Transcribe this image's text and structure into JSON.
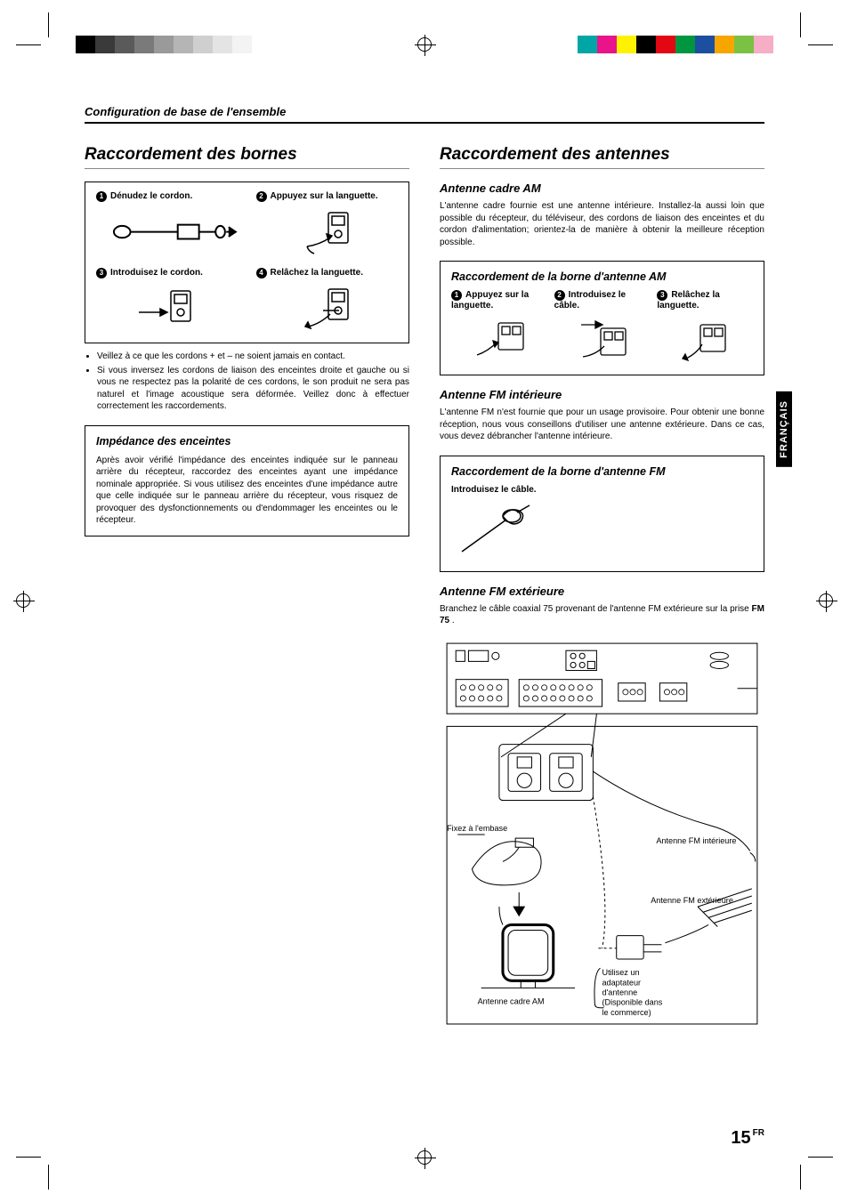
{
  "colorbar_left": [
    "#000000",
    "#3a3a3a",
    "#5a5a5a",
    "#7a7a7a",
    "#9a9a9a",
    "#b5b5b5",
    "#cfcfcf",
    "#e4e4e4",
    "#f3f3f3",
    "#ffffff"
  ],
  "colorbar_right": [
    "#00a6a6",
    "#e9138a",
    "#fff200",
    "#000000",
    "#e30613",
    "#009640",
    "#1d4fa1",
    "#f7a600",
    "#7bc143",
    "#f6adc6"
  ],
  "breadcrumb": "Configuration de base de l'ensemble",
  "lang_tab": "FRANÇAIS",
  "page_number": "15",
  "page_lang_suffix": "FR",
  "left": {
    "title": "Raccordement des bornes",
    "steps": [
      {
        "n": "1",
        "label": "Dénudez le cordon."
      },
      {
        "n": "2",
        "label": "Appuyez sur la languette."
      },
      {
        "n": "3",
        "label": "Introduisez le cordon."
      },
      {
        "n": "4",
        "label": "Relâchez la languette."
      }
    ],
    "bullets": [
      "Veillez à ce que les cordons + et – ne soient jamais en contact.",
      "Si vous inversez les cordons de liaison des enceintes droite et gauche ou si vous ne respectez pas la polarité de ces cordons, le son produit ne sera pas naturel et l'image acoustique sera déformée. Veillez donc à effectuer correctement les raccordements."
    ],
    "impedance": {
      "title": "Impédance des enceintes",
      "text": "Après avoir vérifié l'impédance des enceintes indiquée sur le panneau arrière du récepteur, raccordez des enceintes ayant une impédance nominale appropriée. Si vous utilisez des enceintes d'une impédance autre que celle indiquée sur le panneau arrière du récepteur, vous risquez de provoquer des dysfonctionnements ou d'endommager les enceintes ou le récepteur."
    }
  },
  "right": {
    "title": "Raccordement des antennes",
    "am_loop": {
      "title": "Antenne cadre AM",
      "text": "L'antenne cadre fournie est une antenne intérieure. Installez-la aussi loin que possible du récepteur, du téléviseur, des cordons de liaison des enceintes et du cordon d'alimentation; orientez-la de manière à obtenir la meilleure réception possible."
    },
    "am_box": {
      "title": "Raccordement de la borne d'antenne AM",
      "steps": [
        {
          "n": "1",
          "label": "Appuyez sur la languette."
        },
        {
          "n": "2",
          "label": "Introduisez le câble."
        },
        {
          "n": "3",
          "label": "Relâchez la languette."
        }
      ]
    },
    "fm_int": {
      "title": "Antenne FM intérieure",
      "text": "L'antenne FM n'est fournie que pour un usage provisoire. Pour obtenir une bonne réception, nous vous conseillons d'utiliser une antenne extérieure. Dans ce cas, vous devez débrancher l'antenne intérieure."
    },
    "fm_box": {
      "title": "Raccordement de la borne d'antenne FM",
      "step_label": "Introduisez le câble."
    },
    "fm_ext": {
      "title": "Antenne FM extérieure",
      "text_pre": "Branchez le câble coaxial 75    provenant de l'antenne FM extérieure sur la prise ",
      "text_bold": "FM 75",
      "text_post": "   ."
    },
    "diagram": {
      "base_label": "Fixez à l'embase",
      "fm_int_label": "Antenne FM intérieure",
      "fm_ext_label": "Antenne FM extérieure",
      "am_label": "Antenne cadre AM",
      "adapter_label": "Utilisez un adaptateur d'antenne (Disponible dans le commerce)"
    }
  }
}
